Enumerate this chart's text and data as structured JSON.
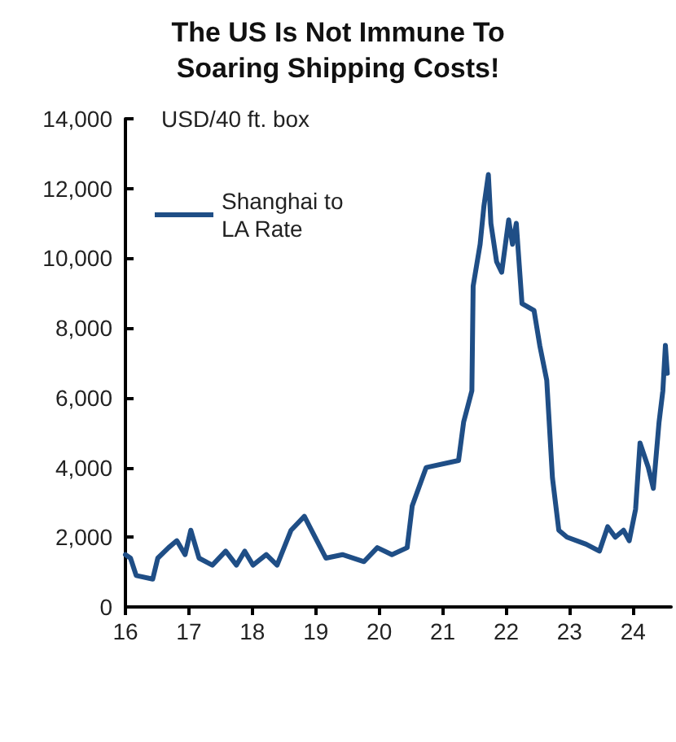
{
  "chart_data": {
    "type": "line",
    "title": "The US Is Not Immune To\nSoaring Shipping Costs!",
    "ylabel": "USD/40 ft. box",
    "legend": "top left",
    "grid": false,
    "marker": "none",
    "line_style": "solid",
    "xlim": [
      16,
      24.6
    ],
    "xticks": [
      16,
      17,
      18,
      19,
      20,
      21,
      22,
      23,
      24
    ],
    "ylim": [
      0,
      14000
    ],
    "yticks": [
      0,
      {
        "value": 2000,
        "label": "2,000"
      },
      {
        "value": 4000,
        "label": "4,000"
      },
      {
        "value": 6000,
        "label": "6,000"
      },
      {
        "value": 8000,
        "label": "8,000"
      },
      {
        "value": 10000,
        "label": "10,000"
      },
      {
        "value": 12000,
        "label": "12,000"
      },
      {
        "value": 14000,
        "label": "14,000"
      }
    ],
    "series": [
      {
        "name": "Shanghai to LA Rate",
        "color": "#1f4e86",
        "x": [
          16.0,
          16.08,
          16.17,
          16.43,
          16.51,
          16.68,
          16.81,
          16.94,
          17.03,
          17.16,
          17.37,
          17.58,
          17.75,
          17.88,
          18.01,
          18.22,
          18.39,
          18.61,
          18.82,
          18.99,
          19.16,
          19.42,
          19.76,
          19.97,
          20.2,
          20.44,
          20.52,
          20.74,
          21.25,
          21.33,
          21.46,
          21.48,
          21.59,
          21.65,
          21.72,
          21.76,
          21.85,
          21.93,
          22.04,
          22.1,
          22.16,
          22.25,
          22.44,
          22.53,
          22.64,
          22.73,
          22.83,
          22.96,
          23.26,
          23.47,
          23.6,
          23.72,
          23.85,
          23.94,
          24.04,
          24.11,
          24.24,
          24.32,
          24.41,
          24.47,
          24.51,
          24.54
        ],
        "values": [
          1500,
          1400,
          900,
          800,
          1400,
          1700,
          1900,
          1500,
          2200,
          1400,
          1200,
          1600,
          1200,
          1600,
          1200,
          1500,
          1200,
          2200,
          2600,
          2000,
          1400,
          1500,
          1300,
          1700,
          1500,
          1700,
          2900,
          4000,
          4200,
          5300,
          6200,
          9200,
          10400,
          11500,
          12400,
          11000,
          9900,
          9600,
          11100,
          10400,
          11000,
          8700,
          8500,
          7500,
          6500,
          3700,
          2200,
          2000,
          1800,
          1600,
          2300,
          2000,
          2200,
          1900,
          2800,
          4700,
          4000,
          3400,
          5300,
          6200,
          7500,
          6700
        ]
      }
    ]
  }
}
